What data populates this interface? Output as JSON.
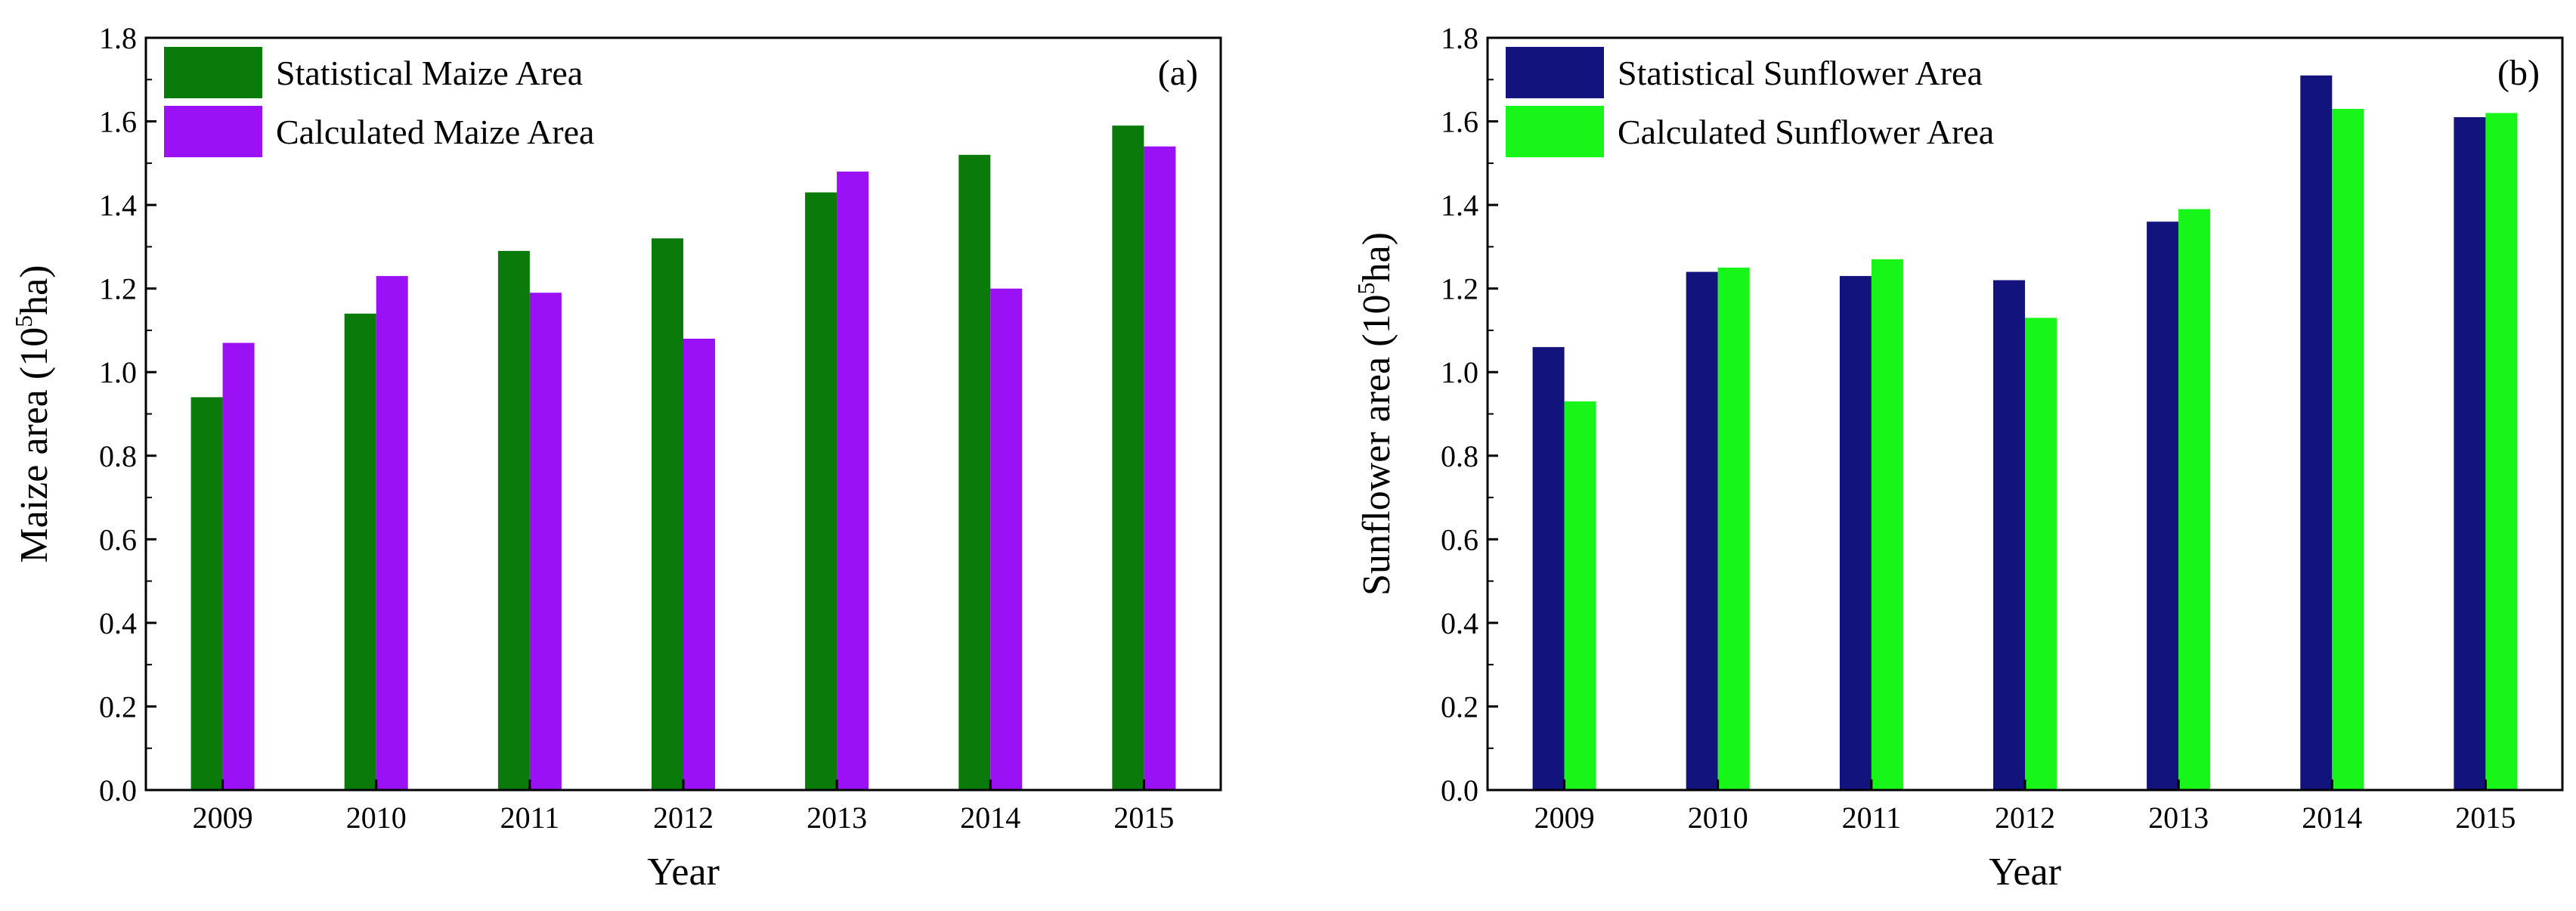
{
  "chart_data": [
    {
      "type": "bar",
      "panel_label": "(a)",
      "title": "",
      "xlabel": "Year",
      "ylabel_main": "Maize area (10",
      "ylabel_sup": "5",
      "ylabel_tail": "ha)",
      "ylim": [
        0.0,
        1.8
      ],
      "yticks": [
        "0.0",
        "0.2",
        "0.4",
        "0.6",
        "0.8",
        "1.0",
        "1.2",
        "1.4",
        "1.6",
        "1.8"
      ],
      "categories": [
        "2009",
        "2010",
        "2011",
        "2012",
        "2013",
        "2014",
        "2015"
      ],
      "legend_position": "top-left",
      "series": [
        {
          "name": "Statistical Maize Area",
          "color": "#0a7a0a",
          "values": [
            0.94,
            1.14,
            1.29,
            1.32,
            1.43,
            1.52,
            1.59
          ]
        },
        {
          "name": "Calculated Maize Area",
          "color": "#9b11f5",
          "values": [
            1.07,
            1.23,
            1.19,
            1.08,
            1.48,
            1.2,
            1.54
          ]
        }
      ]
    },
    {
      "type": "bar",
      "panel_label": "(b)",
      "title": "",
      "xlabel": "Year",
      "ylabel_main": "Sunflower area (10",
      "ylabel_sup": "5",
      "ylabel_tail": "ha)",
      "ylim": [
        0.0,
        1.8
      ],
      "yticks": [
        "0.0",
        "0.2",
        "0.4",
        "0.6",
        "0.8",
        "1.0",
        "1.2",
        "1.4",
        "1.6",
        "1.8"
      ],
      "categories": [
        "2009",
        "2010",
        "2011",
        "2012",
        "2013",
        "2014",
        "2015"
      ],
      "legend_position": "top-left",
      "series": [
        {
          "name": "Statistical Sunflower Area",
          "color": "#12137c",
          "values": [
            1.06,
            1.24,
            1.23,
            1.22,
            1.36,
            1.71,
            1.61
          ]
        },
        {
          "name": "Calculated Sunflower Area",
          "color": "#18f518",
          "values": [
            0.93,
            1.25,
            1.27,
            1.13,
            1.39,
            1.63,
            1.62
          ]
        }
      ]
    }
  ]
}
